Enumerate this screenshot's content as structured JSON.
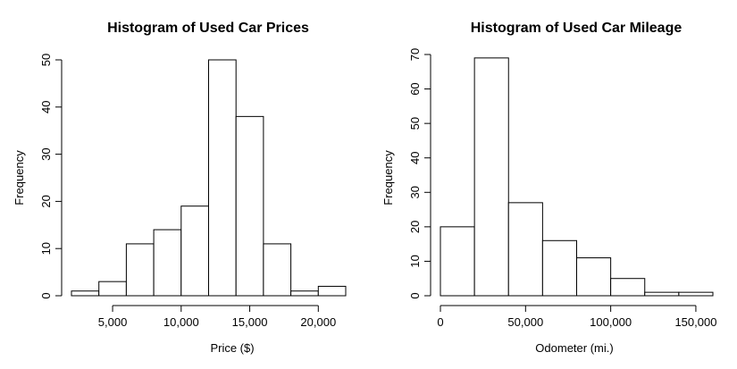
{
  "chart_data": [
    {
      "type": "bar",
      "title": "Histogram of Used Car Prices",
      "xlabel": "Price ($)",
      "ylabel": "Frequency",
      "bins": [
        {
          "start": 2000,
          "end": 4000,
          "count": 1
        },
        {
          "start": 4000,
          "end": 6000,
          "count": 3
        },
        {
          "start": 6000,
          "end": 8000,
          "count": 11
        },
        {
          "start": 8000,
          "end": 10000,
          "count": 14
        },
        {
          "start": 10000,
          "end": 12000,
          "count": 19
        },
        {
          "start": 12000,
          "end": 14000,
          "count": 50
        },
        {
          "start": 14000,
          "end": 16000,
          "count": 38
        },
        {
          "start": 16000,
          "end": 18000,
          "count": 11
        },
        {
          "start": 18000,
          "end": 20000,
          "count": 1
        },
        {
          "start": 20000,
          "end": 22000,
          "count": 2
        }
      ],
      "xlim": [
        2000,
        22000
      ],
      "ylim": [
        0,
        50
      ],
      "xticks": [
        {
          "value": 5000,
          "label": "5,000"
        },
        {
          "value": 10000,
          "label": "10,000"
        },
        {
          "value": 15000,
          "label": "15,000"
        },
        {
          "value": 20000,
          "label": "20,000"
        }
      ],
      "yticks": [
        {
          "value": 0,
          "label": "0"
        },
        {
          "value": 10,
          "label": "10"
        },
        {
          "value": 20,
          "label": "20"
        },
        {
          "value": 30,
          "label": "30"
        },
        {
          "value": 40,
          "label": "40"
        },
        {
          "value": 50,
          "label": "50"
        }
      ],
      "grid": false
    },
    {
      "type": "bar",
      "title": "Histogram of Used Car Mileage",
      "xlabel": "Odometer (mi.)",
      "ylabel": "Frequency",
      "bins": [
        {
          "start": 0,
          "end": 20000,
          "count": 20
        },
        {
          "start": 20000,
          "end": 40000,
          "count": 69
        },
        {
          "start": 40000,
          "end": 60000,
          "count": 27
        },
        {
          "start": 60000,
          "end": 80000,
          "count": 16
        },
        {
          "start": 80000,
          "end": 100000,
          "count": 11
        },
        {
          "start": 100000,
          "end": 120000,
          "count": 5
        },
        {
          "start": 120000,
          "end": 140000,
          "count": 1
        },
        {
          "start": 140000,
          "end": 160000,
          "count": 1
        }
      ],
      "xlim": [
        0,
        160000
      ],
      "ylim": [
        0,
        70
      ],
      "xticks": [
        {
          "value": 0,
          "label": "0"
        },
        {
          "value": 50000,
          "label": "50,000"
        },
        {
          "value": 100000,
          "label": "100,000"
        },
        {
          "value": 150000,
          "label": "150,000"
        }
      ],
      "yticks": [
        {
          "value": 0,
          "label": "0"
        },
        {
          "value": 10,
          "label": "10"
        },
        {
          "value": 20,
          "label": "20"
        },
        {
          "value": 30,
          "label": "30"
        },
        {
          "value": 40,
          "label": "40"
        },
        {
          "value": 50,
          "label": "50"
        },
        {
          "value": 60,
          "label": "60"
        },
        {
          "value": 70,
          "label": "70"
        }
      ],
      "grid": false
    }
  ]
}
